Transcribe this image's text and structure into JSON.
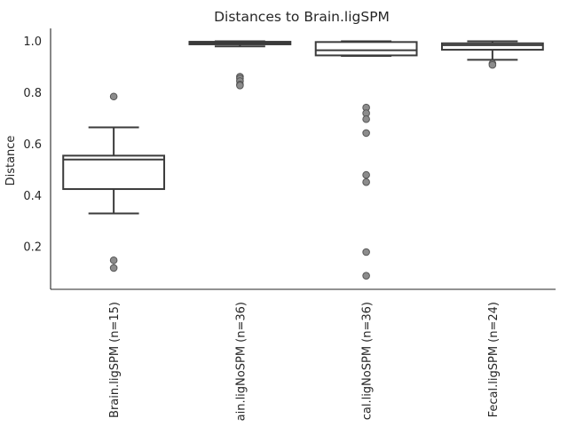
{
  "chart_data": {
    "type": "box",
    "title": "Distances to Brain.ligSPM",
    "xlabel": "",
    "ylabel": "Distance",
    "ylim": [
      0.035,
      1.05
    ],
    "yticks": [
      0.2,
      0.4,
      0.6,
      0.8,
      1.0
    ],
    "ytick_labels": [
      "0.2",
      "0.4",
      "0.6",
      "0.8",
      "1.0"
    ],
    "categories": [
      "Brain.ligSPM (n=15)",
      "ain.ligNoSPM (n=36)",
      "cal.ligNoSPM (n=36)",
      "Fecal.ligSPM (n=24)"
    ],
    "boxes": [
      {
        "whislo": 0.33,
        "q1": 0.425,
        "med": 0.54,
        "q3": 0.555,
        "whishi": 0.665,
        "fliers": [
          0.785,
          0.148,
          0.118
        ]
      },
      {
        "whislo": 0.98,
        "q1": 0.988,
        "med": 0.993,
        "q3": 0.998,
        "whishi": 1.0,
        "fliers": [
          0.862,
          0.855,
          0.845,
          0.832,
          0.828
        ]
      },
      {
        "whislo": 0.943,
        "q1": 0.945,
        "med": 0.965,
        "q3": 0.997,
        "whishi": 1.0,
        "fliers": [
          0.742,
          0.72,
          0.697,
          0.643,
          0.48,
          0.452,
          0.18,
          0.088
        ]
      },
      {
        "whislo": 0.928,
        "q1": 0.967,
        "med": 0.985,
        "q3": 0.992,
        "whishi": 1.0,
        "fliers": [
          0.913,
          0.908
        ]
      }
    ],
    "grid": false,
    "legend": "none",
    "colors": {
      "box_face": "#ffffff",
      "box_edge": "#3b3b3b",
      "flier_fill": "#8c8c8c",
      "flier_edge": "#555555",
      "spine": "#262626",
      "text": "#262626"
    }
  }
}
